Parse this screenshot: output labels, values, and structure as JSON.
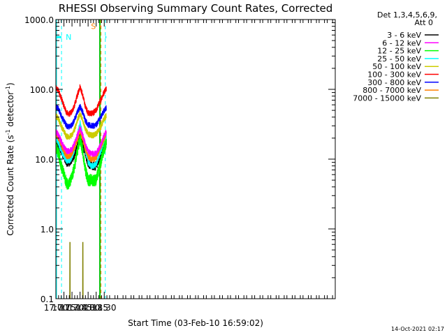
{
  "chart_data": {
    "type": "line",
    "title": "RHESSI Observing Summary Count Rates, Corrected",
    "xlabel": "Start Time (03-Feb-10 16:59:02)",
    "ylabel_main": "Corrected Count Rate (s",
    "ylabel_sup": "-1",
    "ylabel_mid": " detector",
    "ylabel_sup2": "-1",
    "ylabel_end": ")",
    "yscale": "log",
    "ylim": [
      0.1,
      1000
    ],
    "xlim": [
      1020,
      1540
    ],
    "yticks": [
      {
        "value": 1000,
        "label": "1000.0"
      },
      {
        "value": 100,
        "label": "100.0"
      },
      {
        "value": 10,
        "label": "10.0"
      },
      {
        "value": 1,
        "label": "1.0"
      },
      {
        "value": 0.1,
        "label": "0.1"
      }
    ],
    "xticks": [
      {
        "value": 1020,
        "label": "17:00"
      },
      {
        "value": 1035,
        "label": "17:15"
      },
      {
        "value": 1050,
        "label": "17:30"
      },
      {
        "value": 1065,
        "label": "17:45"
      },
      {
        "value": 1080,
        "label": "18:00"
      },
      {
        "value": 1095,
        "label": "18:15"
      },
      {
        "value": 1110,
        "label": "18:30"
      }
    ],
    "legend_title": [
      "Det 1,3,4,5,6,9,",
      "Att 0"
    ],
    "legend_position": "right",
    "series": [
      {
        "name": "3 - 6 keV",
        "color": "#000000",
        "x": [
          1020,
          1025,
          1030,
          1035,
          1040,
          1045,
          1050,
          1055,
          1060,
          1065,
          1070,
          1075,
          1080,
          1085,
          1090,
          1095,
          1100,
          1105,
          1110,
          1114
        ],
        "values": [
          18,
          16,
          13,
          11,
          9,
          9,
          10,
          12,
          16,
          21,
          16,
          12,
          9,
          8,
          8,
          8,
          10,
          12,
          15,
          17
        ]
      },
      {
        "name": "6 - 12 keV",
        "color": "#ff00ff",
        "x": [
          1020,
          1025,
          1030,
          1035,
          1040,
          1045,
          1050,
          1055,
          1060,
          1065,
          1070,
          1075,
          1080,
          1085,
          1090,
          1095,
          1100,
          1105,
          1110,
          1114
        ],
        "values": [
          25,
          22,
          18,
          15,
          13,
          13,
          14,
          17,
          22,
          28,
          22,
          16,
          13,
          12,
          12,
          12,
          14,
          17,
          22,
          25
        ]
      },
      {
        "name": "12 - 25 keV",
        "color": "#00ff00",
        "x": [
          1020,
          1025,
          1030,
          1035,
          1040,
          1045,
          1050,
          1055,
          1060,
          1065,
          1070,
          1075,
          1080,
          1085,
          1090,
          1095,
          1100,
          1105,
          1110,
          1114
        ],
        "values": [
          15,
          12,
          8,
          6,
          4.5,
          4.5,
          5.5,
          8,
          13,
          19,
          13,
          7,
          5,
          5,
          5,
          5,
          7,
          10,
          14,
          17
        ]
      },
      {
        "name": "25 - 50 keV",
        "color": "#00ffff",
        "x": [
          1020,
          1025,
          1030,
          1035,
          1040,
          1045,
          1050,
          1055,
          1060,
          1065,
          1070,
          1075,
          1080,
          1085,
          1090,
          1095,
          1100,
          1105,
          1110,
          1114
        ],
        "values": [
          20,
          17,
          13,
          11,
          9.5,
          9.5,
          10.5,
          14,
          22,
          33,
          22,
          13,
          9,
          8,
          8,
          8.5,
          11,
          14,
          19,
          22
        ]
      },
      {
        "name": "50 - 100 keV",
        "color": "#cccc00",
        "x": [
          1020,
          1025,
          1030,
          1035,
          1040,
          1045,
          1050,
          1055,
          1060,
          1065,
          1070,
          1075,
          1080,
          1085,
          1090,
          1095,
          1100,
          1105,
          1110,
          1114
        ],
        "values": [
          42,
          37,
          30,
          25,
          21,
          21,
          22,
          27,
          36,
          45,
          36,
          27,
          23,
          22,
          22,
          23,
          26,
          31,
          38,
          42
        ]
      },
      {
        "name": "100 - 300 keV",
        "color": "#ff0000",
        "x": [
          1020,
          1025,
          1030,
          1035,
          1040,
          1045,
          1050,
          1055,
          1060,
          1065,
          1070,
          1075,
          1080,
          1085,
          1090,
          1095,
          1100,
          1105,
          1110,
          1114
        ],
        "values": [
          105,
          95,
          75,
          58,
          46,
          44,
          48,
          60,
          82,
          110,
          82,
          56,
          46,
          45,
          46,
          50,
          62,
          75,
          92,
          105
        ]
      },
      {
        "name": "300 - 800 keV",
        "color": "#0000ff",
        "x": [
          1020,
          1025,
          1030,
          1035,
          1040,
          1045,
          1050,
          1055,
          1060,
          1065,
          1070,
          1075,
          1080,
          1085,
          1090,
          1095,
          1100,
          1105,
          1110,
          1114
        ],
        "values": [
          57,
          52,
          42,
          35,
          30,
          29,
          31,
          37,
          47,
          57,
          47,
          36,
          31,
          30,
          30,
          31,
          36,
          42,
          50,
          55
        ]
      },
      {
        "name": "800 - 7000 keV",
        "color": "#ff8000",
        "x": [
          1020,
          1025,
          1030,
          1035,
          1040,
          1045,
          1050,
          1055,
          1060,
          1065,
          1070,
          1075,
          1080,
          1085,
          1090,
          1095,
          1100,
          1105,
          1110,
          1114
        ],
        "values": [
          23,
          20,
          16,
          13,
          11,
          11,
          12,
          15,
          19,
          25,
          19,
          14,
          11,
          10,
          10,
          10.5,
          13,
          16,
          20,
          23
        ]
      },
      {
        "name": "7000 - 15000 keV",
        "color": "#808000",
        "x": [
          1046,
          1046.2,
          1046.4,
          1070,
          1070.2,
          1070.4
        ],
        "values": [
          0.1,
          0.65,
          0.1,
          0.1,
          0.65,
          0.1
        ]
      }
    ],
    "annotations": {
      "night_label": "N",
      "saa_label": "S",
      "night_periods": [
        [
          1020,
          1030.5
        ],
        [
          1112,
          1114
        ]
      ],
      "saa_period": [
        1102.2,
        1104
      ],
      "green_marker_x": 1102,
      "cyan_dashed_x": [
        1030.5,
        1112
      ],
      "orange_dashed_x": 1104,
      "night_color": "#00ffff",
      "saa_color": "#ff8000",
      "marker_color": "#00c000"
    },
    "timestamp": "14-Oct-2021 02:17"
  }
}
